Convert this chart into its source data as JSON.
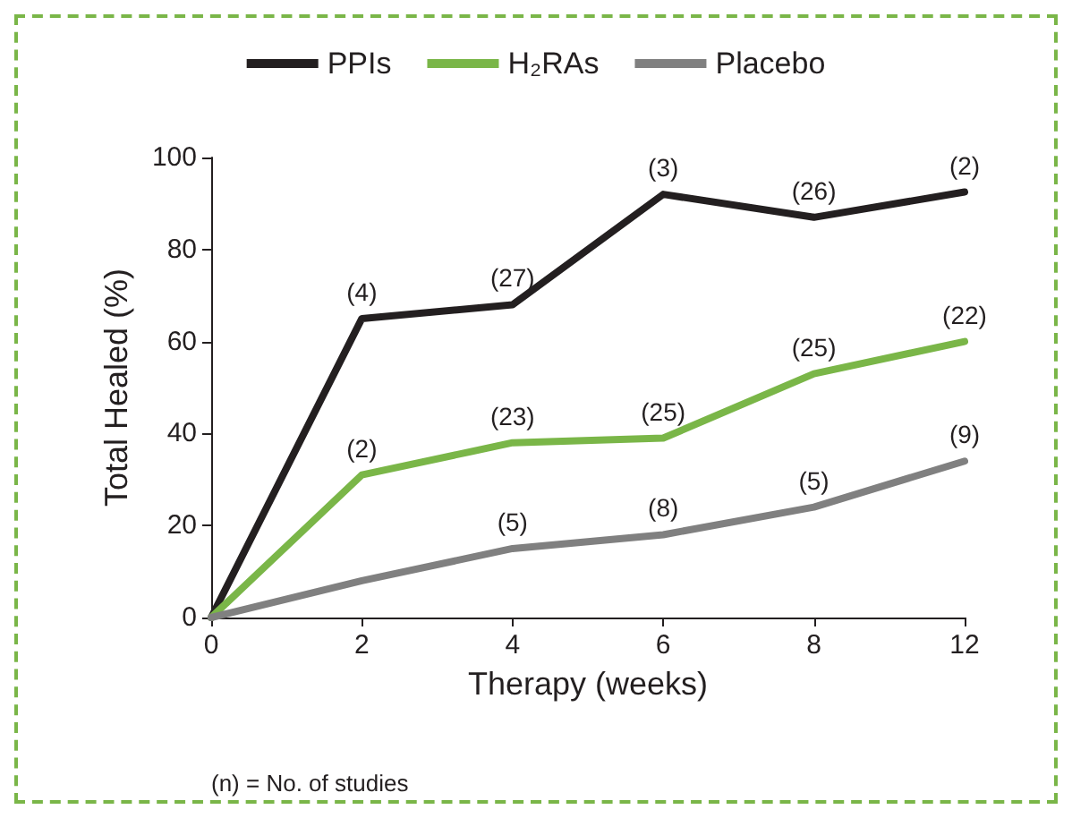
{
  "chart_data": {
    "type": "line",
    "xlabel": "Therapy (weeks)",
    "ylabel": "Total Healed (%)",
    "categories": [
      "0",
      "2",
      "4",
      "6",
      "8",
      "12"
    ],
    "ylim": [
      0,
      100
    ],
    "yticks": [
      0,
      20,
      40,
      60,
      80,
      100
    ],
    "grid": false,
    "legend": "top",
    "marker": "none",
    "line_style": "solid",
    "annotations": [
      "(n) = No. of studies",
      {
        "text": "(4)",
        "x": "2",
        "y": 65
      },
      {
        "text": "(27)",
        "x": "4",
        "y": 68
      },
      {
        "text": "(3)",
        "x": "6",
        "y": 92
      },
      {
        "text": "(26)",
        "x": "8",
        "y": 87
      },
      {
        "text": "(2)",
        "x": "12",
        "y": 92.5
      },
      {
        "text": "(2)",
        "x": "2",
        "y": 31
      },
      {
        "text": "(23)",
        "x": "4",
        "y": 38
      },
      {
        "text": "(25)",
        "x": "6",
        "y": 39
      },
      {
        "text": "(25)",
        "x": "8",
        "y": 53
      },
      {
        "text": "(22)",
        "x": "12",
        "y": 60
      },
      {
        "text": "(5)",
        "x": "4",
        "y": 15
      },
      {
        "text": "(8)",
        "x": "6",
        "y": 18
      },
      {
        "text": "(5)",
        "x": "8",
        "y": 24
      },
      {
        "text": "(9)",
        "x": "12",
        "y": 34
      }
    ],
    "series": [
      {
        "name": "PPIs",
        "color": "#231f20",
        "values": [
          0,
          65,
          68,
          92,
          87,
          92.5
        ]
      },
      {
        "name": "H₂RAs",
        "color": "#7ab648",
        "values": [
          0,
          31,
          38,
          39,
          53,
          60
        ]
      },
      {
        "name": "Placebo",
        "color": "#808080",
        "values": [
          0,
          8,
          15,
          18,
          24,
          34
        ]
      }
    ]
  }
}
